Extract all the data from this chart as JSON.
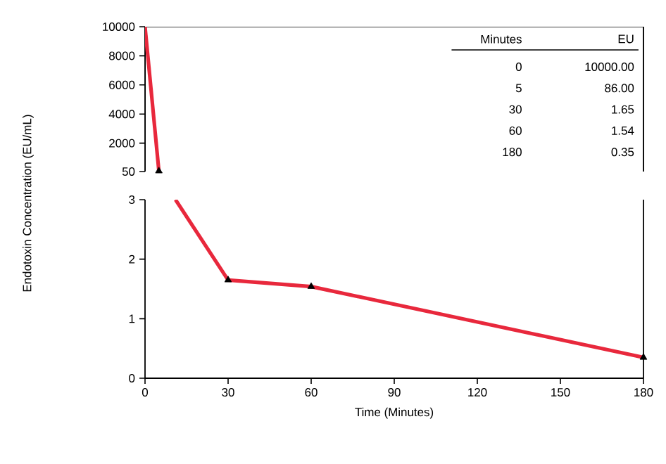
{
  "chart_data": [
    {
      "type": "line",
      "xlim": [
        0,
        180
      ],
      "ylim": [
        50,
        10000
      ],
      "yticks": [
        50,
        2000,
        4000,
        6000,
        8000,
        10000
      ],
      "tick_labels": "y",
      "marker": "triangle",
      "series": [
        {
          "color": "#e8283c",
          "x": [
            0,
            5
          ],
          "values": [
            10000,
            86
          ]
        }
      ],
      "annotations": [
        "Minutes",
        "EU",
        "0",
        "10000.00",
        "5",
        "86.00",
        "30",
        "1.65",
        "60",
        "1.54",
        "180",
        "0.35"
      ]
    },
    {
      "type": "line",
      "xlabel": "Time (Minutes)",
      "ylabel": "Endotoxin Concentration (EU/mL)",
      "xlim": [
        0,
        180
      ],
      "ylim": [
        0,
        3
      ],
      "xticks": [
        0,
        30,
        60,
        90,
        120,
        150,
        180
      ],
      "yticks": [
        0,
        1,
        2,
        3
      ],
      "marker": "triangle",
      "series": [
        {
          "color": "#e8283c",
          "x": [
            11,
            30,
            60,
            180
          ],
          "values": [
            3,
            1.65,
            1.54,
            0.35
          ]
        }
      ]
    }
  ]
}
